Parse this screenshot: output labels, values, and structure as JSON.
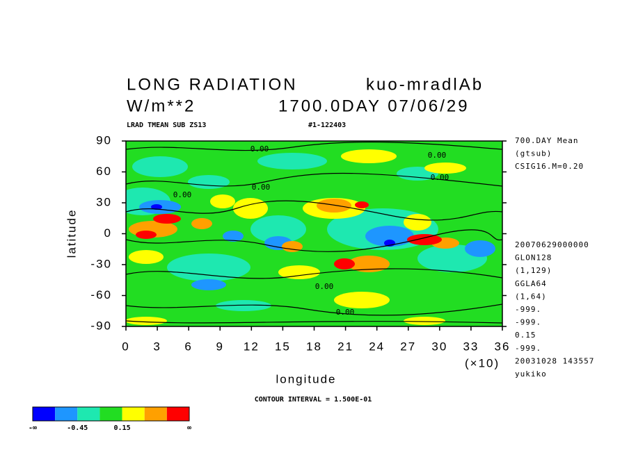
{
  "chart_data": {
    "type": "contour",
    "title_left": "LONG RADIATION",
    "title_right": "kuo-mradlAb",
    "subtitle_left": "W/m**2",
    "subtitle_right": "1700.0DAY 07/06/29",
    "header_left": "LRAD TMEAN SUB ZS13",
    "header_right": "#1-122403",
    "xlabel": "longitude",
    "ylabel": "latitude",
    "x_multiplier": "(×10)",
    "xlim": [
      0,
      36
    ],
    "xticks": [
      0,
      3,
      6,
      9,
      12,
      15,
      18,
      21,
      24,
      27,
      30,
      33,
      36
    ],
    "ylim": [
      -90,
      90
    ],
    "yticks": [
      -90,
      -60,
      -30,
      0,
      30,
      60,
      90
    ],
    "info_top": [
      "700.DAY Mean",
      "(gtsub)",
      "CSIG16.M=0.20"
    ],
    "info_bottom": [
      "20070629000000",
      "GLON128",
      "(1,129)",
      "GGLA64",
      "(1,64)",
      "-999.",
      "-999.",
      "0.15",
      "-999.",
      "20031028 143557",
      "yukiko"
    ],
    "contour_labels": [
      "0.00",
      "0.00",
      "0.00",
      "0.00",
      "0.00",
      "0.00",
      "0.00"
    ],
    "footer": "CONTOUR INTERVAL = 1.500E-01",
    "colorbar": {
      "colors": [
        "#0000ff",
        "#1e96ff",
        "#1ee8b0",
        "#22dd22",
        "#ffff00",
        "#ffa000",
        "#ff0000"
      ],
      "labels": [
        "-∞",
        "-0.45",
        "0.15",
        "∞"
      ]
    }
  }
}
